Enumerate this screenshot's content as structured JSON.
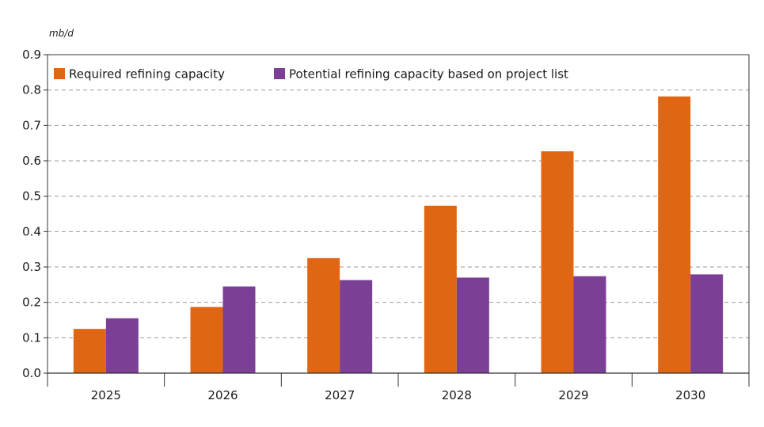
{
  "chart_data": {
    "type": "bar",
    "unit": "mb/d",
    "categories": [
      "2025",
      "2026",
      "2027",
      "2028",
      "2029",
      "2030"
    ],
    "series": [
      {
        "name": "Required refining capacity",
        "color": "#e06614",
        "values": [
          0.125,
          0.187,
          0.325,
          0.473,
          0.627,
          0.782
        ]
      },
      {
        "name": "Potential refining capacity based on project list",
        "color": "#7b3f96",
        "values": [
          0.155,
          0.245,
          0.263,
          0.27,
          0.274,
          0.279
        ]
      }
    ],
    "yticks": [
      "0.0",
      "0.1",
      "0.2",
      "0.3",
      "0.4",
      "0.5",
      "0.6",
      "0.7",
      "0.8",
      "0.9"
    ],
    "ylim": [
      0,
      0.9
    ],
    "grid": "horizontal-dashed",
    "legend_position": "top-left"
  }
}
